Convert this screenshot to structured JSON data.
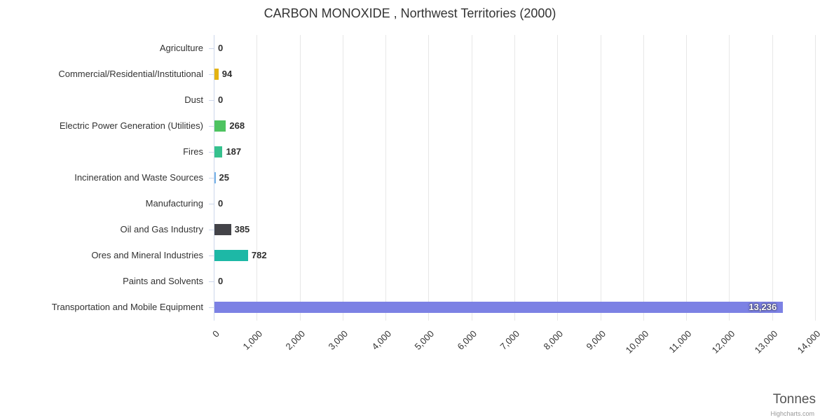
{
  "credits": "Highcharts.com",
  "chart_data": {
    "type": "bar",
    "title": "CARBON MONOXIDE , Northwest Territories (2000)",
    "categories": [
      "Agriculture",
      "Commercial/Residential/Institutional",
      "Dust",
      "Electric Power Generation (Utilities)",
      "Fires",
      "Incineration and Waste Sources",
      "Manufacturing",
      "Oil and Gas Industry",
      "Ores and Mineral Industries",
      "Paints and Solvents",
      "Transportation and Mobile Equipment"
    ],
    "values": [
      0,
      94,
      0,
      268,
      187,
      25,
      0,
      385,
      782,
      0,
      13236
    ],
    "value_labels": [
      "0",
      "94",
      "0",
      "268",
      "187",
      "25",
      "0",
      "385",
      "782",
      "0",
      "13,236"
    ],
    "colors": [
      "#7cb5ec",
      "#e4b313",
      "#7cb5ec",
      "#4dc360",
      "#36c18e",
      "#76b3e8",
      "#7cb5ec",
      "#434348",
      "#1db8a6",
      "#7cb5ec",
      "#7c81e4"
    ],
    "xlabel": "Tonnes",
    "xlim": [
      0,
      14000
    ],
    "xticks": [
      0,
      1000,
      2000,
      3000,
      4000,
      5000,
      6000,
      7000,
      8000,
      9000,
      10000,
      11000,
      12000,
      13000,
      14000
    ],
    "xtick_labels": [
      "0",
      "1,000",
      "2,000",
      "3,000",
      "4,000",
      "5,000",
      "6,000",
      "7,000",
      "8,000",
      "9,000",
      "10,000",
      "11,000",
      "12,000",
      "13,000",
      "14,000"
    ],
    "grid": true,
    "legend": false
  }
}
